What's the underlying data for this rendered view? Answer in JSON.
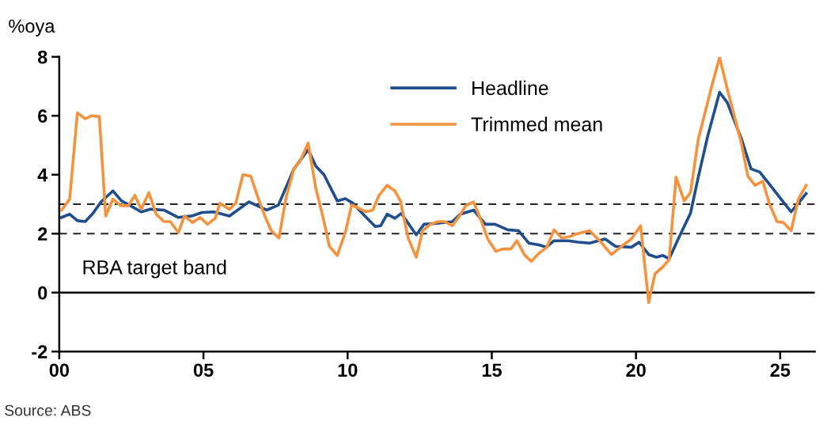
{
  "chart_data": {
    "type": "line",
    "ylabel": "%oya",
    "xlim": [
      0,
      26.2
    ],
    "xticks": [
      {
        "value": 0,
        "label": "00"
      },
      {
        "value": 5,
        "label": "05"
      },
      {
        "value": 10,
        "label": "10"
      },
      {
        "value": 15,
        "label": "15"
      },
      {
        "value": 20,
        "label": "20"
      },
      {
        "value": 25,
        "label": "25"
      }
    ],
    "ylim": [
      -2,
      8
    ],
    "yticks": [
      -2,
      0,
      2,
      4,
      6,
      8
    ],
    "series": [
      {
        "name": "Headline",
        "color": "#1f4e8c",
        "x": [
          0.08,
          0.36,
          0.63,
          0.9,
          1.17,
          1.45,
          1.86,
          2.16,
          2.43,
          2.84,
          3.17,
          3.63,
          4.13,
          4.59,
          4.95,
          5.36,
          5.9,
          6.58,
          7.19,
          7.6,
          8.14,
          8.63,
          8.9,
          9.18,
          9.64,
          9.92,
          10.19,
          10.6,
          10.96,
          11.15,
          11.37,
          11.64,
          11.86,
          12.38,
          12.65,
          13.09,
          13.63,
          13.91,
          14.37,
          14.78,
          15.11,
          15.55,
          15.93,
          16.28,
          16.64,
          16.89,
          17.16,
          17.65,
          18.0,
          18.39,
          18.93,
          19.29,
          19.84,
          20.11,
          20.44,
          20.71,
          20.93,
          21.15,
          21.48,
          21.89,
          22.16,
          22.49,
          22.9,
          23.17,
          23.66,
          23.99,
          24.29,
          24.7,
          25.03,
          25.38,
          25.63,
          25.9
        ],
        "values": [
          2.55,
          2.66,
          2.44,
          2.41,
          2.69,
          3.08,
          3.45,
          3.11,
          2.97,
          2.74,
          2.83,
          2.8,
          2.55,
          2.6,
          2.72,
          2.74,
          2.6,
          3.08,
          2.8,
          2.97,
          4.2,
          4.85,
          4.29,
          4.0,
          3.11,
          3.19,
          3.03,
          2.6,
          2.24,
          2.27,
          2.66,
          2.52,
          2.69,
          1.96,
          2.32,
          2.35,
          2.41,
          2.66,
          2.8,
          2.32,
          2.32,
          2.13,
          2.1,
          1.68,
          1.62,
          1.54,
          1.76,
          1.76,
          1.71,
          1.68,
          1.82,
          1.57,
          1.54,
          1.71,
          1.29,
          1.2,
          1.26,
          1.15,
          1.85,
          2.69,
          3.92,
          5.32,
          6.8,
          6.44,
          5.21,
          4.2,
          4.09,
          3.59,
          3.17,
          2.74,
          3.03,
          3.36
        ]
      },
      {
        "name": "Trimmed mean",
        "color": "#f5923e",
        "x": [
          0.08,
          0.36,
          0.63,
          0.9,
          1.12,
          1.39,
          1.61,
          1.86,
          2.13,
          2.4,
          2.62,
          2.84,
          3.11,
          3.36,
          3.63,
          3.85,
          4.13,
          4.34,
          4.62,
          4.89,
          5.14,
          5.41,
          5.57,
          5.9,
          6.12,
          6.37,
          6.64,
          6.91,
          7.13,
          7.35,
          7.62,
          7.87,
          8.14,
          8.36,
          8.63,
          8.9,
          9.18,
          9.37,
          9.64,
          9.92,
          10.14,
          10.36,
          10.63,
          10.87,
          11.09,
          11.37,
          11.64,
          11.83,
          12.1,
          12.38,
          12.6,
          12.87,
          13.14,
          13.36,
          13.63,
          13.88,
          14.1,
          14.37,
          14.64,
          14.86,
          15.14,
          15.38,
          15.66,
          15.87,
          16.15,
          16.37,
          16.64,
          16.91,
          17.16,
          17.43,
          17.7,
          17.92,
          18.39,
          18.74,
          19.15,
          19.5,
          19.84,
          20.16,
          20.44,
          20.66,
          20.93,
          21.15,
          21.39,
          21.67,
          21.89,
          22.16,
          22.38,
          22.65,
          22.9,
          23.17,
          23.44,
          23.66,
          23.88,
          24.13,
          24.4,
          24.62,
          24.89,
          25.11,
          25.38,
          25.63,
          25.9
        ],
        "values": [
          2.8,
          3.17,
          6.1,
          5.9,
          6.0,
          5.97,
          2.6,
          3.17,
          2.95,
          2.95,
          3.3,
          2.83,
          3.39,
          2.66,
          2.41,
          2.41,
          2.04,
          2.6,
          2.38,
          2.55,
          2.32,
          2.52,
          3.03,
          2.83,
          3.03,
          4.0,
          3.95,
          3.17,
          2.6,
          2.1,
          1.85,
          3.25,
          4.2,
          4.48,
          5.07,
          3.53,
          2.41,
          1.57,
          1.26,
          2.04,
          2.97,
          2.88,
          2.74,
          2.8,
          3.3,
          3.64,
          3.45,
          3.11,
          1.85,
          1.2,
          2.1,
          2.32,
          2.41,
          2.41,
          2.27,
          2.6,
          2.95,
          3.08,
          2.41,
          1.82,
          1.4,
          1.48,
          1.48,
          1.76,
          1.26,
          1.06,
          1.34,
          1.54,
          2.13,
          1.85,
          1.9,
          1.99,
          2.1,
          1.76,
          1.29,
          1.57,
          1.82,
          2.27,
          -0.34,
          0.64,
          0.87,
          1.12,
          3.92,
          3.11,
          3.39,
          5.21,
          6.05,
          7.09,
          7.98,
          6.89,
          5.88,
          5.04,
          3.95,
          3.64,
          3.78,
          3.03,
          2.41,
          2.38,
          2.1,
          3.17,
          3.64
        ]
      }
    ],
    "ref_lines": [
      {
        "axis": "y",
        "value": 3,
        "color": "#222222",
        "line_style": "dashed"
      },
      {
        "axis": "y",
        "value": 2,
        "color": "#222222",
        "line_style": "dashed"
      },
      {
        "axis": "y",
        "value": 0,
        "color": "#000000",
        "line_style": "solid"
      }
    ],
    "annotations": [
      "RBA target band",
      "Source: ABS"
    ],
    "legend": "top",
    "grid": false,
    "line_style": "solid",
    "marker": "none"
  }
}
